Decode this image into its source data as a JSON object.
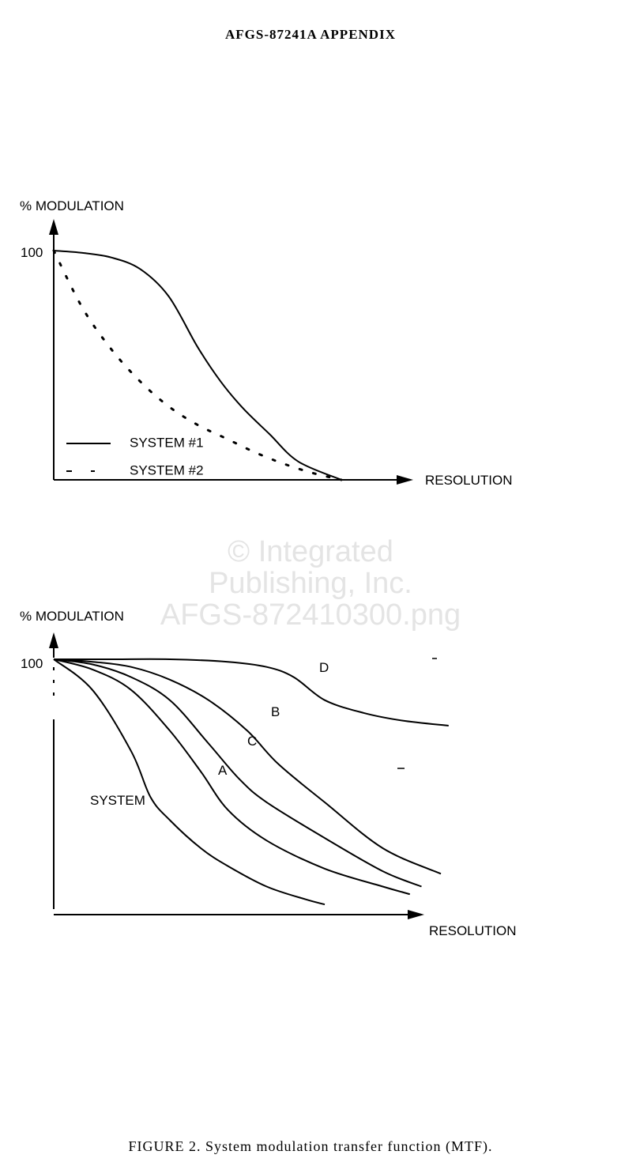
{
  "page": {
    "header": "AFGS-87241A APPENDIX",
    "watermark": [
      "© Integrated",
      "Publishing, Inc.",
      "AFGS-872410300.png"
    ],
    "caption": "FIGURE 2.  System modulation transfer function (MTF)."
  },
  "chart_data": [
    {
      "type": "line",
      "title": "",
      "ylabel": "% MODULATION",
      "xlabel": "RESOLUTION",
      "ytick": "100",
      "xlim": [
        0,
        100
      ],
      "ylim": [
        0,
        100
      ],
      "grid": false,
      "legend_placement": "bottom-left",
      "series": [
        {
          "name": "SYSTEM #1",
          "style": "solid",
          "x": [
            0,
            10,
            20,
            30,
            40,
            50,
            58,
            66,
            75,
            85,
            100
          ],
          "y": [
            100,
            99,
            97,
            92,
            80,
            58,
            43,
            31,
            20,
            8,
            0
          ]
        },
        {
          "name": "SYSTEM #2",
          "style": "dotted",
          "x": [
            0,
            10,
            20,
            30,
            40,
            50,
            60,
            70,
            80,
            90,
            100
          ],
          "y": [
            100,
            75,
            57,
            43,
            32,
            24,
            18,
            12,
            7,
            3,
            0
          ]
        }
      ]
    },
    {
      "type": "line",
      "title": "",
      "ylabel": "% MODULATION",
      "xlabel": "RESOLUTION",
      "ytick": "100",
      "xlim": [
        0,
        100
      ],
      "ylim": [
        0,
        100
      ],
      "grid": false,
      "series": [
        {
          "name": "SYSTEM",
          "x": [
            0,
            10,
            20,
            25,
            30,
            38,
            45,
            55,
            65,
            70
          ],
          "y": [
            100,
            88,
            64,
            46,
            37,
            26,
            19,
            11,
            6,
            4
          ]
        },
        {
          "name": "A",
          "x": [
            0,
            10,
            20,
            30,
            38,
            45,
            55,
            70,
            85,
            92
          ],
          "y": [
            100,
            96,
            88,
            72,
            56,
            41,
            29,
            18,
            11,
            8
          ]
        },
        {
          "name": "C",
          "x": [
            0,
            10,
            20,
            30,
            40,
            48,
            55,
            70,
            85,
            95
          ],
          "y": [
            100,
            98,
            93,
            84,
            67,
            53,
            44,
            30,
            17,
            11
          ]
        },
        {
          "name": "B",
          "x": [
            0,
            10,
            20,
            30,
            40,
            50,
            58,
            70,
            85,
            100
          ],
          "y": [
            100,
            99,
            97,
            92,
            84,
            72,
            59,
            44,
            26,
            16
          ]
        },
        {
          "name": "D",
          "x": [
            0,
            15,
            30,
            45,
            55,
            62,
            70,
            80,
            90,
            102
          ],
          "y": [
            100,
            100,
            100,
            99,
            97,
            93,
            84,
            79,
            76,
            74
          ]
        }
      ]
    }
  ]
}
